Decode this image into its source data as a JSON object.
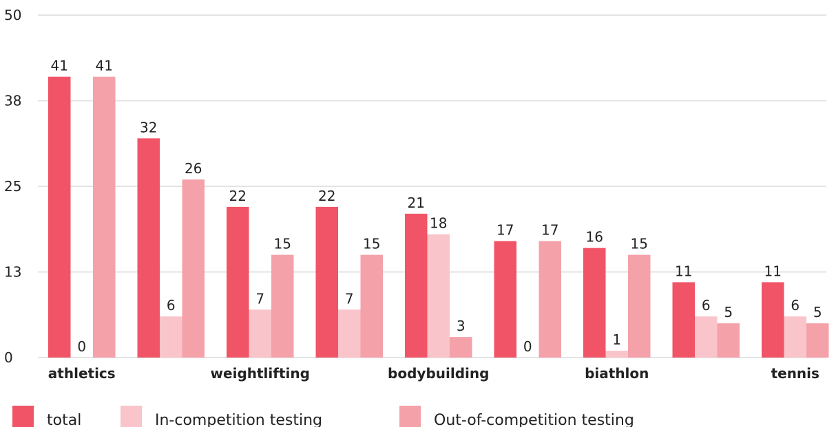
{
  "chart_data": {
    "type": "bar",
    "categories": [
      "athletics",
      null,
      "weightlifting",
      null,
      "bodybuilding",
      null,
      "biathlon",
      null,
      "tennis"
    ],
    "series": [
      {
        "name": "total",
        "color": "#f05466",
        "values": [
          41,
          32,
          22,
          22,
          21,
          17,
          16,
          11,
          11
        ]
      },
      {
        "name": "In-competition testing",
        "color": "#f9c4ca",
        "values": [
          0,
          6,
          7,
          7,
          18,
          0,
          1,
          6,
          6
        ]
      },
      {
        "name": "Out-of-competition testing",
        "color": "#f4a1a9",
        "values": [
          41,
          26,
          15,
          15,
          3,
          17,
          15,
          5,
          5
        ]
      }
    ],
    "ylim": [
      0,
      50
    ],
    "yticks": [
      0,
      {
        "value": 12.5,
        "label": "13"
      },
      25,
      {
        "value": 37.5,
        "label": "38"
      },
      50
    ],
    "grid": true,
    "legend": "bottom"
  }
}
